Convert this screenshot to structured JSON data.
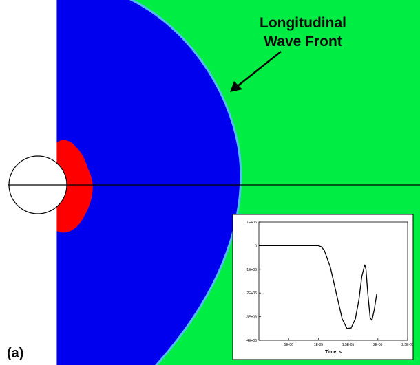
{
  "annotation": {
    "line1": "Longitudinal",
    "line2": "Wave Front"
  },
  "panel_label": "(a)",
  "colors": {
    "background": "#00ee44",
    "compressive_region": "#0000ee",
    "wave_front_edge": "#55bbff",
    "near_field": "#ff0000",
    "borehole": "#ffffff",
    "axis_line": "#000000",
    "inset_line": "#000000"
  },
  "chart_data": {
    "type": "line",
    "title": "",
    "xlabel": "Time, s",
    "ylabel": "",
    "xlim": [
      0,
      2.5e-05
    ],
    "ylim": [
      -4000000.0,
      1000000.0
    ],
    "x_ticks": [
      {
        "value": 5e-06,
        "label": "5E-06"
      },
      {
        "value": 1e-05,
        "label": "1E-05"
      },
      {
        "value": 1.5e-05,
        "label": "1.5E-05"
      },
      {
        "value": 2e-05,
        "label": "2E-05"
      },
      {
        "value": 2.5e-05,
        "label": "2.5E-05"
      }
    ],
    "y_ticks": [
      {
        "value": 1000000.0,
        "label": "1E+06"
      },
      {
        "value": 0,
        "label": "0"
      },
      {
        "value": -1000000.0,
        "label": "-1E+06"
      },
      {
        "value": -2000000.0,
        "label": "-2E+06"
      },
      {
        "value": -3000000.0,
        "label": "-3E+06"
      },
      {
        "value": -4000000.0,
        "label": "-4E+06"
      }
    ],
    "series": [
      {
        "x": [
          0,
          1e-05,
          1.05e-05,
          1.1e-05,
          1.2e-05,
          1.3e-05,
          1.4e-05,
          1.48e-05,
          1.55e-05,
          1.62e-05,
          1.68e-05,
          1.73e-05,
          1.78e-05,
          1.8e-05,
          1.83e-05,
          1.87e-05,
          1.9e-05,
          1.94e-05,
          1.98e-05
        ],
        "y": [
          0,
          0,
          -50000,
          -200000,
          -900000,
          -2000000,
          -3100000,
          -3500000,
          -3480000,
          -3100000,
          -2300000,
          -1300000,
          -800000,
          -1000000,
          -2000000,
          -3050000,
          -3150000,
          -2700000,
          -2050000
        ]
      }
    ]
  }
}
